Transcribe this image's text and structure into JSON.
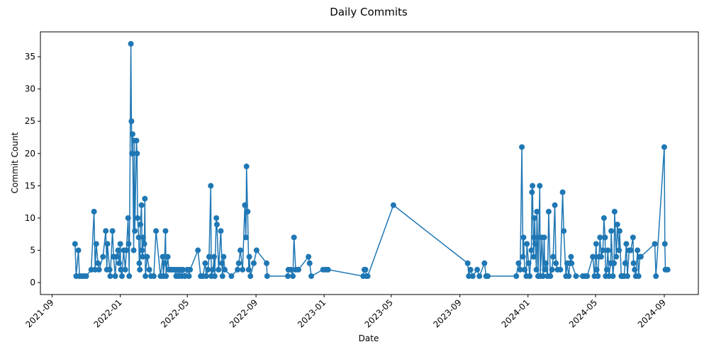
{
  "chart_data": {
    "type": "line",
    "title": "Daily Commits",
    "x_label": "Date",
    "y_label": "Commit Count",
    "series": [
      {
        "name": "Commits",
        "color": "#1f77b4",
        "x": [
          "2021-10-12",
          "2021-10-14",
          "2021-10-18",
          "2021-10-20",
          "2021-10-24",
          "2021-10-28",
          "2021-11-01",
          "2021-11-10",
          "2021-11-15",
          "2021-11-17",
          "2021-11-19",
          "2021-11-22",
          "2021-11-24",
          "2021-12-01",
          "2021-12-06",
          "2021-12-08",
          "2021-12-09",
          "2021-12-13",
          "2021-12-14",
          "2021-12-18",
          "2021-12-20",
          "2021-12-23",
          "2021-12-25",
          "2021-12-28",
          "2021-12-30",
          "2022-01-01",
          "2022-01-02",
          "2022-01-04",
          "2022-01-07",
          "2022-01-10",
          "2022-01-12",
          "2022-01-15",
          "2022-01-16",
          "2022-01-17",
          "2022-01-20",
          "2022-01-21",
          "2022-01-22",
          "2022-01-23",
          "2022-01-25",
          "2022-01-26",
          "2022-01-27",
          "2022-01-30",
          "2022-01-31",
          "2022-02-01",
          "2022-02-03",
          "2022-02-04",
          "2022-02-05",
          "2022-02-06",
          "2022-02-08",
          "2022-02-09",
          "2022-02-10",
          "2022-02-11",
          "2022-02-13",
          "2022-02-14",
          "2022-02-15",
          "2022-02-18",
          "2022-02-22",
          "2022-02-25",
          "2022-03-02",
          "2022-03-06",
          "2022-03-14",
          "2022-03-18",
          "2022-03-19",
          "2022-03-21",
          "2022-03-23",
          "2022-03-24",
          "2022-03-27",
          "2022-03-29",
          "2022-04-01",
          "2022-04-04",
          "2022-04-08",
          "2022-04-11",
          "2022-04-13",
          "2022-04-16",
          "2022-04-18",
          "2022-04-21",
          "2022-04-23",
          "2022-04-27",
          "2022-05-01",
          "2022-05-04",
          "2022-05-06",
          "2022-05-20",
          "2022-05-25",
          "2022-05-29",
          "2022-06-02",
          "2022-06-04",
          "2022-06-07",
          "2022-06-09",
          "2022-06-12",
          "2022-06-13",
          "2022-06-16",
          "2022-06-18",
          "2022-06-19",
          "2022-06-22",
          "2022-06-23",
          "2022-06-26",
          "2022-06-30",
          "2022-07-02",
          "2022-07-03",
          "2022-07-05",
          "2022-07-07",
          "2022-07-19",
          "2022-07-30",
          "2022-08-01",
          "2022-08-04",
          "2022-08-08",
          "2022-08-12",
          "2022-08-14",
          "2022-08-15",
          "2022-08-17",
          "2022-08-19",
          "2022-08-20",
          "2022-08-22",
          "2022-08-28",
          "2022-09-02",
          "2022-09-20",
          "2022-09-21",
          "2022-10-28",
          "2022-10-29",
          "2022-11-02",
          "2022-11-06",
          "2022-11-08",
          "2022-11-11",
          "2022-11-16",
          "2022-12-04",
          "2022-12-06",
          "2022-12-09",
          "2022-12-30",
          "2023-01-04",
          "2023-01-08",
          "2023-03-12",
          "2023-03-14",
          "2023-03-16",
          "2023-03-18",
          "2023-03-20",
          "2023-05-05",
          "2023-09-15",
          "2023-09-17",
          "2023-09-20",
          "2023-09-24",
          "2023-10-02",
          "2023-10-06",
          "2023-10-15",
          "2023-10-18",
          "2023-10-21",
          "2023-12-11",
          "2023-12-15",
          "2023-12-18",
          "2023-12-21",
          "2023-12-23",
          "2023-12-24",
          "2023-12-26",
          "2023-12-29",
          "2023-12-30",
          "2024-01-02",
          "2024-01-04",
          "2024-01-07",
          "2024-01-08",
          "2024-01-09",
          "2024-01-11",
          "2024-01-12",
          "2024-01-13",
          "2024-01-14",
          "2024-01-16",
          "2024-01-17",
          "2024-01-18",
          "2024-01-19",
          "2024-01-22",
          "2024-01-23",
          "2024-01-26",
          "2024-01-28",
          "2024-01-30",
          "2024-01-31",
          "2024-02-02",
          "2024-02-05",
          "2024-02-07",
          "2024-02-10",
          "2024-02-13",
          "2024-02-15",
          "2024-02-18",
          "2024-02-20",
          "2024-02-23",
          "2024-02-28",
          "2024-03-03",
          "2024-03-05",
          "2024-03-09",
          "2024-03-11",
          "2024-03-14",
          "2024-03-16",
          "2024-03-18",
          "2024-03-19",
          "2024-03-27",
          "2024-04-08",
          "2024-04-12",
          "2024-04-16",
          "2024-04-26",
          "2024-04-29",
          "2024-05-02",
          "2024-05-03",
          "2024-05-05",
          "2024-05-07",
          "2024-05-09",
          "2024-05-11",
          "2024-05-14",
          "2024-05-16",
          "2024-05-18",
          "2024-05-19",
          "2024-05-21",
          "2024-05-23",
          "2024-05-25",
          "2024-05-28",
          "2024-05-29",
          "2024-06-01",
          "2024-06-03",
          "2024-06-04",
          "2024-06-07",
          "2024-06-09",
          "2024-06-12",
          "2024-06-13",
          "2024-06-16",
          "2024-06-18",
          "2024-06-21",
          "2024-06-23",
          "2024-06-25",
          "2024-06-27",
          "2024-06-30",
          "2024-07-03",
          "2024-07-07",
          "2024-07-08",
          "2024-07-10",
          "2024-07-12",
          "2024-07-15",
          "2024-07-17",
          "2024-07-19",
          "2024-07-21",
          "2024-08-15",
          "2024-08-17",
          "2024-09-01",
          "2024-09-02",
          "2024-09-03",
          "2024-09-07"
        ],
        "values": [
          6,
          1,
          5,
          1,
          1,
          1,
          1,
          2,
          11,
          2,
          6,
          3,
          2,
          4,
          8,
          2,
          6,
          2,
          1,
          8,
          4,
          1,
          4,
          5,
          3,
          6,
          2,
          1,
          5,
          2,
          5,
          10,
          6,
          1,
          37,
          25,
          20,
          23,
          5,
          22,
          8,
          22,
          20,
          10,
          7,
          3,
          2,
          9,
          12,
          5,
          4,
          7,
          6,
          13,
          1,
          4,
          2,
          1,
          1,
          8,
          1,
          4,
          1,
          3,
          8,
          1,
          4,
          2,
          2,
          2,
          2,
          1,
          2,
          1,
          2,
          1,
          2,
          1,
          2,
          1,
          2,
          5,
          1,
          1,
          3,
          1,
          2,
          4,
          15,
          1,
          2,
          4,
          1,
          10,
          9,
          2,
          8,
          3,
          1,
          4,
          2,
          1,
          2,
          3,
          5,
          2,
          12,
          7,
          18,
          11,
          2,
          4,
          1,
          3,
          5,
          3,
          1,
          1,
          2,
          2,
          1,
          7,
          2,
          2,
          4,
          3,
          1,
          2,
          2,
          2,
          1,
          2,
          2,
          1,
          1,
          12,
          3,
          1,
          2,
          1,
          2,
          1,
          3,
          1,
          1,
          1,
          3,
          2,
          21,
          4,
          7,
          2,
          1,
          6,
          3,
          1,
          5,
          14,
          15,
          4,
          7,
          10,
          6,
          2,
          11,
          7,
          1,
          15,
          1,
          7,
          1,
          7,
          2,
          3,
          1,
          11,
          1,
          2,
          4,
          12,
          3,
          2,
          2,
          14,
          8,
          1,
          3,
          1,
          3,
          4,
          3,
          1,
          1,
          1,
          1,
          4,
          1,
          6,
          2,
          1,
          4,
          7,
          4,
          5,
          10,
          7,
          1,
          2,
          5,
          1,
          3,
          8,
          1,
          3,
          11,
          4,
          9,
          5,
          8,
          1,
          1,
          1,
          3,
          6,
          1,
          5,
          5,
          7,
          3,
          2,
          1,
          5,
          1,
          4,
          4,
          6,
          1,
          21,
          6,
          2,
          2
        ]
      }
    ],
    "xlim": [
      "2021-08-11",
      "2024-11-01"
    ],
    "xticks": [
      {
        "value": "2021-09-01",
        "label": "2021-09"
      },
      {
        "value": "2022-01-01",
        "label": "2022-01"
      },
      {
        "value": "2022-05-01",
        "label": "2022-05"
      },
      {
        "value": "2022-09-01",
        "label": "2022-09"
      },
      {
        "value": "2023-01-01",
        "label": "2023-01"
      },
      {
        "value": "2023-05-01",
        "label": "2023-05"
      },
      {
        "value": "2023-09-01",
        "label": "2023-09"
      },
      {
        "value": "2024-01-01",
        "label": "2024-01"
      },
      {
        "value": "2024-05-01",
        "label": "2024-05"
      },
      {
        "value": "2024-09-01",
        "label": "2024-09"
      }
    ],
    "ylim": [
      -1.85,
      38.85
    ],
    "yticks": [
      0,
      5,
      10,
      15,
      20,
      25,
      30,
      35
    ],
    "grid": false,
    "marker": "circle"
  }
}
